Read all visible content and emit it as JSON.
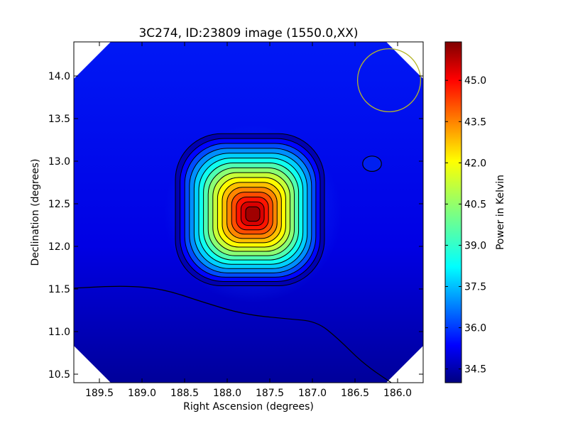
{
  "chart_data": {
    "type": "heatmap",
    "title": "3C274, ID:23809 image (1550.0,XX)",
    "xlabel": "Right Ascension (degrees)",
    "ylabel": "Declination (degrees)",
    "xlim": [
      189.8,
      185.7
    ],
    "ylim": [
      10.4,
      14.4
    ],
    "x_ticks": [
      189.5,
      189.0,
      188.5,
      188.0,
      187.5,
      187.0,
      186.5,
      186.0
    ],
    "y_ticks": [
      10.5,
      11.0,
      11.5,
      12.0,
      12.5,
      13.0,
      13.5,
      14.0
    ],
    "x_tick_labels": [
      "189.5",
      "189.0",
      "188.5",
      "188.0",
      "187.5",
      "187.0",
      "186.5",
      "186.0"
    ],
    "y_tick_labels": [
      "10.5",
      "11.0",
      "11.5",
      "12.0",
      "12.5",
      "13.0",
      "13.5",
      "14.0"
    ],
    "colorbar": {
      "label": "Power in Kelvin",
      "range": [
        34.0,
        46.4
      ],
      "ticks": [
        34.5,
        36.0,
        37.5,
        39.0,
        40.5,
        42.0,
        43.5,
        45.0
      ],
      "tick_labels": [
        "34.5",
        "36.0",
        "37.5",
        "39.0",
        "40.5",
        "42.0",
        "43.5",
        "45.0"
      ],
      "colormap": "jet"
    },
    "source": {
      "ra": 187.7,
      "dec": 12.38,
      "peak_value": 46.0,
      "background_value": 34.6
    },
    "contour_levels": 16,
    "beam_circle": {
      "ra": 186.1,
      "dec": 13.95,
      "radius_deg": 0.37,
      "color": "#b5b52c"
    },
    "secondary_blob": {
      "ra": 186.3,
      "dec": 12.97
    },
    "grid": false
  }
}
